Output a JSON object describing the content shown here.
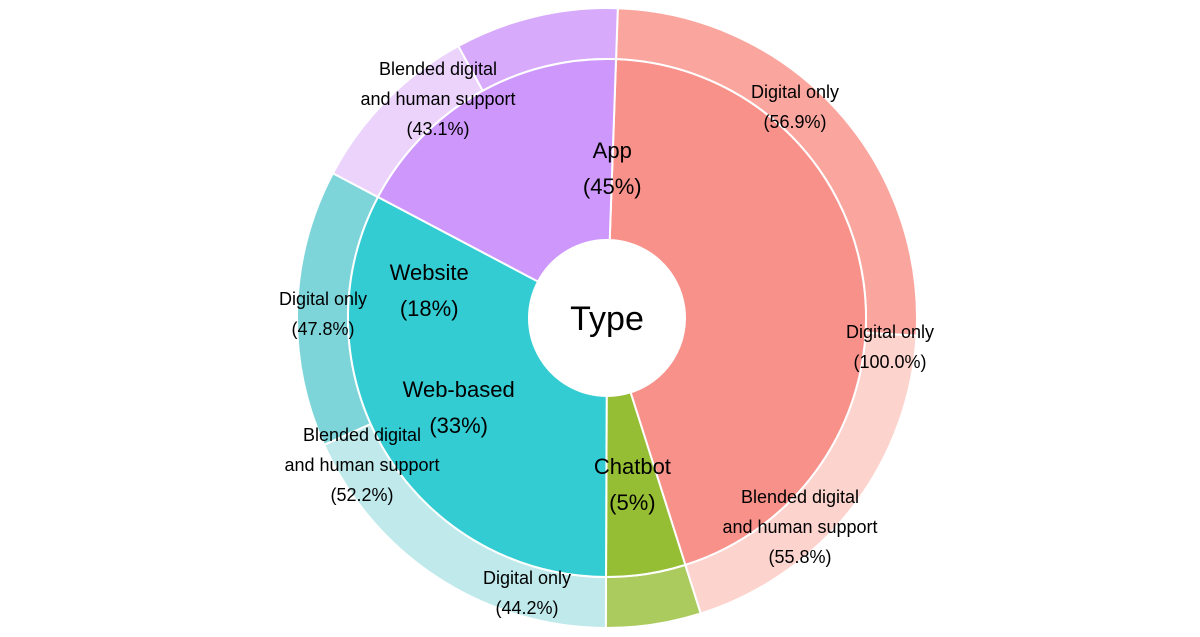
{
  "chart_data": {
    "type": "sunburst",
    "center_label": "Type",
    "inner": [
      {
        "name": "App",
        "percent_label": "(45%)",
        "value": 45,
        "color": "#F8918A"
      },
      {
        "name": "Chatbot",
        "percent_label": "(5%)",
        "value": 5,
        "color": "#96BE35"
      },
      {
        "name": "Web-based",
        "percent_label": "(33%)",
        "value": 33,
        "color": "#33CCD3"
      },
      {
        "name": "Website",
        "percent_label": "(18%)",
        "value": 18,
        "color": "#CE97FB"
      }
    ],
    "outer": [
      {
        "parent": "App",
        "line1": "Digital only",
        "line2": "",
        "percent_label": "(56.9%)",
        "share": 56.9,
        "color": "#FAA69F"
      },
      {
        "parent": "Chatbot",
        "line1": "Digital only",
        "line2": "",
        "percent_label": "(100.0%)",
        "share": 100.0,
        "color": "#ABCB5E"
      },
      {
        "parent": "Web-based",
        "line1": "Blended digital",
        "line2": "and human support",
        "percent_label": "(55.8%)",
        "share": 55.8,
        "color": "#C0E9EB"
      },
      {
        "parent": "Web-based",
        "line1": "Digital only",
        "line2": "",
        "percent_label": "(44.2%)",
        "share": 44.2,
        "color": "#7DD5D9"
      },
      {
        "parent": "Website",
        "line1": "Blended digital",
        "line2": "and human support",
        "percent_label": "(52.2%)",
        "share": 52.2,
        "color": "#EBD3FC"
      },
      {
        "parent": "Website",
        "line1": "Digital only",
        "line2": "",
        "percent_label": "(47.8%)",
        "share": 47.8,
        "color": "#D7AAFB"
      },
      {
        "parent": "App",
        "line1": "Blended digital",
        "line2": "and human support",
        "percent_label": "(43.1%)",
        "share": 43.1,
        "color": "#FDD3CD"
      }
    ]
  }
}
